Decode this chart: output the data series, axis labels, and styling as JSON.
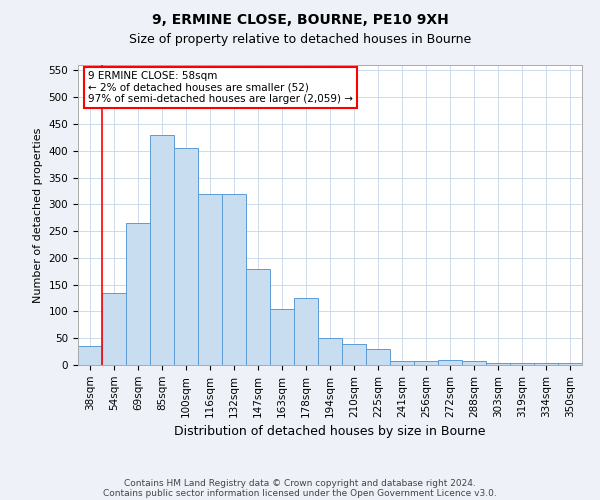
{
  "title1": "9, ERMINE CLOSE, BOURNE, PE10 9XH",
  "title2": "Size of property relative to detached houses in Bourne",
  "xlabel": "Distribution of detached houses by size in Bourne",
  "ylabel": "Number of detached properties",
  "categories": [
    "38sqm",
    "54sqm",
    "69sqm",
    "85sqm",
    "100sqm",
    "116sqm",
    "132sqm",
    "147sqm",
    "163sqm",
    "178sqm",
    "194sqm",
    "210sqm",
    "225sqm",
    "241sqm",
    "256sqm",
    "272sqm",
    "288sqm",
    "303sqm",
    "319sqm",
    "334sqm",
    "350sqm"
  ],
  "values": [
    35,
    135,
    265,
    430,
    405,
    320,
    320,
    180,
    105,
    125,
    50,
    40,
    30,
    8,
    8,
    10,
    8,
    4,
    4,
    4,
    4
  ],
  "bar_color": "#c9ddf0",
  "bar_edge_color": "#5b9bd5",
  "red_line_index": 1,
  "annotation_line1": "9 ERMINE CLOSE: 58sqm",
  "annotation_line2": "← 2% of detached houses are smaller (52)",
  "annotation_line3": "97% of semi-detached houses are larger (2,059) →",
  "ylim": [
    0,
    560
  ],
  "yticks": [
    0,
    50,
    100,
    150,
    200,
    250,
    300,
    350,
    400,
    450,
    500,
    550
  ],
  "footnote1": "Contains HM Land Registry data © Crown copyright and database right 2024.",
  "footnote2": "Contains public sector information licensed under the Open Government Licence v3.0.",
  "bg_color": "#eef2f8",
  "plot_bg_color": "#ffffff",
  "grid_color": "#c8d4e8",
  "title1_fontsize": 10,
  "title2_fontsize": 9,
  "ylabel_fontsize": 8,
  "xlabel_fontsize": 9,
  "tick_fontsize": 7.5,
  "annot_fontsize": 7.5,
  "footnote_fontsize": 6.5
}
